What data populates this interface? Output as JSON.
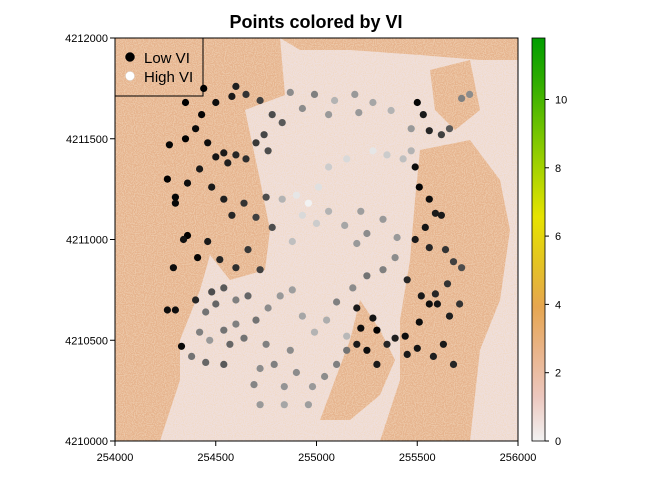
{
  "chart_data": {
    "type": "scatter",
    "title": "Points colored by VI",
    "xlabel": "",
    "ylabel": "",
    "xlim": [
      254000,
      256000
    ],
    "ylim": [
      4210000,
      4212000
    ],
    "x_ticks": [
      254000,
      254500,
      255000,
      255500,
      256000
    ],
    "y_ticks": [
      4210000,
      4210500,
      4211000,
      4211500,
      4212000
    ],
    "x_tick_labels": [
      "254000",
      "254500",
      "255000",
      "255500",
      "256000"
    ],
    "y_tick_labels": [
      "4210000",
      "4210500",
      "4211000",
      "4211500",
      "4212000"
    ],
    "legend": {
      "position": "top-left",
      "entries": [
        {
          "label": "Low VI",
          "color": "#000000"
        },
        {
          "label": "High VI",
          "color": "#ffffff"
        }
      ]
    },
    "colorbar": {
      "position": "right",
      "range": [
        0,
        11.8
      ],
      "ticks": [
        0,
        2,
        4,
        6,
        8,
        10
      ],
      "tick_labels": [
        "0",
        "2",
        "4",
        "6",
        "8",
        "10"
      ],
      "colors": [
        "#f2f2f2",
        "#ecc7be",
        "#e9b48a",
        "#e6a650",
        "#e4c422",
        "#e6e300",
        "#aad400",
        "#6dc200",
        "#30ad00",
        "#009d00"
      ]
    },
    "raster_colors": {
      "background": "#efdfdc",
      "vegetation": "#e4ad80",
      "highlight": "#d3c43a"
    },
    "points": [
      [
        254440,
        4211750,
        0.0
      ],
      [
        254350,
        4211680,
        0.0
      ],
      [
        254430,
        4211620,
        0.02
      ],
      [
        254500,
        4211680,
        0.05
      ],
      [
        254580,
        4211710,
        0.1
      ],
      [
        254600,
        4211760,
        0.12
      ],
      [
        254650,
        4211720,
        0.2
      ],
      [
        254720,
        4211690,
        0.25
      ],
      [
        254780,
        4211620,
        0.3
      ],
      [
        254830,
        4211580,
        0.35
      ],
      [
        254870,
        4211730,
        0.55
      ],
      [
        254350,
        4211500,
        0.0
      ],
      [
        254400,
        4211550,
        0.04
      ],
      [
        254460,
        4211480,
        0.05
      ],
      [
        254500,
        4211410,
        0.08
      ],
      [
        254540,
        4211430,
        0.1
      ],
      [
        254560,
        4211380,
        0.12
      ],
      [
        254600,
        4211420,
        0.15
      ],
      [
        254650,
        4211400,
        0.18
      ],
      [
        254700,
        4211480,
        0.22
      ],
      [
        254740,
        4211520,
        0.28
      ],
      [
        254760,
        4211440,
        0.3
      ],
      [
        254270,
        4211470,
        0.02
      ],
      [
        254260,
        4211300,
        0.0
      ],
      [
        254300,
        4211210,
        0.02
      ],
      [
        254360,
        4211280,
        0.05
      ],
      [
        254420,
        4211350,
        0.1
      ],
      [
        254480,
        4211260,
        0.1
      ],
      [
        254540,
        4211200,
        0.12
      ],
      [
        254580,
        4211120,
        0.15
      ],
      [
        254640,
        4211180,
        0.2
      ],
      [
        254700,
        4211110,
        0.25
      ],
      [
        254750,
        4211210,
        0.3
      ],
      [
        254300,
        4211180,
        0.03
      ],
      [
        254360,
        4211020,
        0.0
      ],
      [
        254410,
        4210910,
        0.02
      ],
      [
        254290,
        4210860,
        0.05
      ],
      [
        254340,
        4211000,
        0.07
      ],
      [
        254460,
        4210990,
        0.1
      ],
      [
        254520,
        4210900,
        0.15
      ],
      [
        254600,
        4210860,
        0.18
      ],
      [
        254660,
        4210950,
        0.22
      ],
      [
        254720,
        4210850,
        0.25
      ],
      [
        254780,
        4211060,
        0.3
      ],
      [
        254300,
        4210650,
        0.05
      ],
      [
        254260,
        4210650,
        0.05
      ],
      [
        254330,
        4210470,
        0.04
      ],
      [
        254400,
        4210700,
        0.15
      ],
      [
        254480,
        4210740,
        0.3
      ],
      [
        254540,
        4210760,
        0.35
      ],
      [
        254450,
        4210640,
        0.45
      ],
      [
        254600,
        4210700,
        0.5
      ],
      [
        254660,
        4210720,
        0.4
      ],
      [
        254700,
        4210600,
        0.45
      ],
      [
        254760,
        4210660,
        0.55
      ],
      [
        254820,
        4210720,
        0.6
      ],
      [
        254880,
        4210750,
        0.62
      ],
      [
        254930,
        4210620,
        0.65
      ],
      [
        254990,
        4210540,
        0.7
      ],
      [
        255050,
        4210600,
        0.68
      ],
      [
        255150,
        4210520,
        0.72
      ],
      [
        255200,
        4210480,
        0.1
      ],
      [
        255220,
        4210560,
        0.05
      ],
      [
        255280,
        4210610,
        0.08
      ],
      [
        255300,
        4210550,
        0.0
      ],
      [
        255250,
        4210450,
        0.05
      ],
      [
        255300,
        4210380,
        0.1
      ],
      [
        255350,
        4210480,
        0.15
      ],
      [
        255200,
        4210660,
        0.1
      ],
      [
        255100,
        4210690,
        0.5
      ],
      [
        255180,
        4210760,
        0.55
      ],
      [
        255250,
        4210820,
        0.45
      ],
      [
        255330,
        4210850,
        0.5
      ],
      [
        255390,
        4210910,
        0.55
      ],
      [
        255400,
        4211010,
        0.6
      ],
      [
        255330,
        4211100,
        0.6
      ],
      [
        255250,
        4211030,
        0.55
      ],
      [
        255200,
        4210980,
        0.6
      ],
      [
        255140,
        4211070,
        0.65
      ],
      [
        255220,
        4211140,
        0.62
      ],
      [
        255060,
        4211140,
        0.7
      ],
      [
        255000,
        4211080,
        0.8
      ],
      [
        254930,
        4211120,
        0.85
      ],
      [
        254880,
        4210990,
        0.75
      ],
      [
        254830,
        4211200,
        0.7
      ],
      [
        254900,
        4211220,
        0.9
      ],
      [
        254960,
        4211180,
        0.95
      ],
      [
        255010,
        4211260,
        0.88
      ],
      [
        255060,
        4211360,
        0.8
      ],
      [
        255150,
        4211400,
        0.85
      ],
      [
        255280,
        4211440,
        0.9
      ],
      [
        255350,
        4211420,
        0.8
      ],
      [
        255430,
        4211400,
        0.75
      ],
      [
        255470,
        4211440,
        0.7
      ],
      [
        255470,
        4211550,
        0.6
      ],
      [
        255500,
        4211680,
        0.02
      ],
      [
        255530,
        4211620,
        0.1
      ],
      [
        255560,
        4211540,
        0.15
      ],
      [
        255620,
        4211520,
        0.25
      ],
      [
        255660,
        4211550,
        0.35
      ],
      [
        255720,
        4211700,
        0.5
      ],
      [
        255760,
        4211720,
        0.55
      ],
      [
        255370,
        4211640,
        0.7
      ],
      [
        255280,
        4211680,
        0.65
      ],
      [
        255210,
        4211630,
        0.6
      ],
      [
        255190,
        4211720,
        0.6
      ],
      [
        255090,
        4211690,
        0.7
      ],
      [
        255060,
        4211620,
        0.6
      ],
      [
        254990,
        4211720,
        0.5
      ],
      [
        254930,
        4211650,
        0.55
      ],
      [
        255490,
        4211360,
        0.05
      ],
      [
        255510,
        4211260,
        0.02
      ],
      [
        255560,
        4211200,
        0.05
      ],
      [
        255590,
        4211130,
        0.1
      ],
      [
        255620,
        4211120,
        0.1
      ],
      [
        255540,
        4211060,
        0.08
      ],
      [
        255490,
        4211000,
        0.1
      ],
      [
        255560,
        4210960,
        0.15
      ],
      [
        255640,
        4210950,
        0.2
      ],
      [
        255680,
        4210890,
        0.25
      ],
      [
        255720,
        4210860,
        0.3
      ],
      [
        255650,
        4210780,
        0.2
      ],
      [
        255590,
        4210730,
        0.15
      ],
      [
        255520,
        4210720,
        0.1
      ],
      [
        255450,
        4210800,
        0.15
      ],
      [
        255560,
        4210680,
        0.05
      ],
      [
        255600,
        4210680,
        0.08
      ],
      [
        255660,
        4210620,
        0.12
      ],
      [
        255710,
        4210680,
        0.2
      ],
      [
        255510,
        4210590,
        0.05
      ],
      [
        255440,
        4210520,
        0.05
      ],
      [
        255500,
        4210460,
        0.08
      ],
      [
        255580,
        4210420,
        0.12
      ],
      [
        255630,
        4210480,
        0.1
      ],
      [
        255680,
        4210380,
        0.15
      ],
      [
        255450,
        4210430,
        0.1
      ],
      [
        255390,
        4210510,
        0.12
      ],
      [
        255150,
        4210450,
        0.45
      ],
      [
        255100,
        4210380,
        0.5
      ],
      [
        255040,
        4210320,
        0.55
      ],
      [
        254980,
        4210270,
        0.6
      ],
      [
        254900,
        4210340,
        0.55
      ],
      [
        254840,
        4210270,
        0.58
      ],
      [
        254790,
        4210380,
        0.5
      ],
      [
        254720,
        4210360,
        0.55
      ],
      [
        254690,
        4210280,
        0.52
      ],
      [
        254720,
        4210180,
        0.6
      ],
      [
        254840,
        4210180,
        0.65
      ],
      [
        254960,
        4210180,
        0.62
      ],
      [
        254870,
        4210450,
        0.55
      ],
      [
        254750,
        4210480,
        0.5
      ],
      [
        254640,
        4210510,
        0.45
      ],
      [
        254570,
        4210480,
        0.4
      ],
      [
        254540,
        4210380,
        0.35
      ],
      [
        254450,
        4210390,
        0.4
      ],
      [
        254380,
        4210420,
        0.45
      ],
      [
        254470,
        4210500,
        0.6
      ],
      [
        254540,
        4210550,
        0.45
      ],
      [
        254600,
        4210580,
        0.5
      ],
      [
        254500,
        4210680,
        0.4
      ],
      [
        254420,
        4210540,
        0.5
      ]
    ]
  }
}
